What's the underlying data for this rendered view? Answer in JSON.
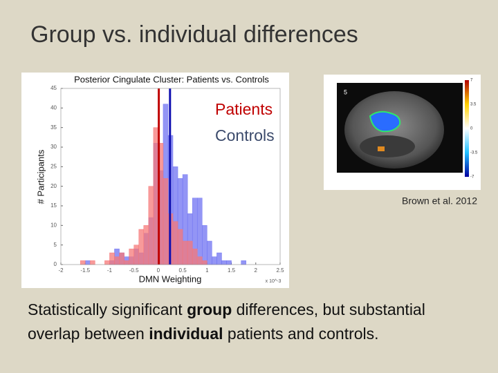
{
  "title": "Group vs. individual differences",
  "chart_data": {
    "type": "histogram",
    "title": "Posterior Cingulate Cluster: Patients vs. Controls",
    "x_label": "DMN Weighting",
    "y_label": "# Participants",
    "x_scale_label": "x 10^-3",
    "bins": [
      -1.6,
      -1.5,
      -1.4,
      -1.3,
      -1.2,
      -1.1,
      -1,
      -0.9,
      -0.8,
      -0.7,
      -0.6,
      -0.5,
      -0.4,
      -0.3,
      -0.2,
      -0.1,
      0,
      0.1,
      0.2,
      0.3,
      0.4,
      0.5,
      0.6,
      0.7,
      0.8,
      0.9,
      1,
      1.1,
      1.2,
      1.3,
      1.4,
      1.5,
      1.6,
      1.7,
      1.8
    ],
    "series": [
      {
        "name": "Controls",
        "color": "#6f72f2",
        "legend_color": "#3b4a6b",
        "values": [
          0,
          1,
          0,
          0,
          0,
          0,
          1,
          4,
          3,
          2,
          2,
          4,
          3,
          8,
          12,
          31,
          24,
          41,
          33,
          25,
          22,
          23,
          13,
          17,
          17,
          10,
          6,
          2,
          3,
          1,
          1,
          0,
          0,
          1
        ]
      },
      {
        "name": "Patients",
        "color": "#f57878",
        "legend_color": "#c00000",
        "values": [
          1,
          0,
          1,
          0,
          0,
          1,
          3,
          2,
          3,
          1,
          4,
          5,
          9,
          10,
          20,
          35,
          31,
          22,
          13,
          11,
          9,
          6,
          6,
          4,
          2,
          1,
          0,
          0,
          0,
          0,
          0,
          0,
          0,
          0
        ]
      }
    ],
    "reference_lines": [
      {
        "x": 0.01,
        "color": "#c00000"
      },
      {
        "x": 0.24,
        "color": "#1010b0"
      }
    ],
    "xlim": [
      -2,
      2.5
    ],
    "xticks": [
      -2,
      -1.5,
      -1,
      -0.5,
      0,
      0.5,
      1,
      1.5,
      2,
      2.5
    ],
    "ylim": [
      0,
      45
    ],
    "yticks": [
      0,
      5,
      10,
      15,
      20,
      25,
      30,
      35,
      40,
      45
    ]
  },
  "brain_figure": {
    "panel_label": "5",
    "colorbar_labels": [
      "7",
      "3.5",
      "0",
      "-3.5",
      "-7"
    ]
  },
  "citation": "Brown et al. 2012",
  "caption": [
    [
      {
        "text": "Statistically significant ",
        "bold": false
      },
      {
        "text": "group",
        "bold": true
      },
      {
        "text": " differences, but substantial",
        "bold": false
      }
    ],
    [
      {
        "text": "overlap between ",
        "bold": false
      },
      {
        "text": "individual",
        "bold": true
      },
      {
        "text": " patients and controls.",
        "bold": false
      }
    ]
  ]
}
